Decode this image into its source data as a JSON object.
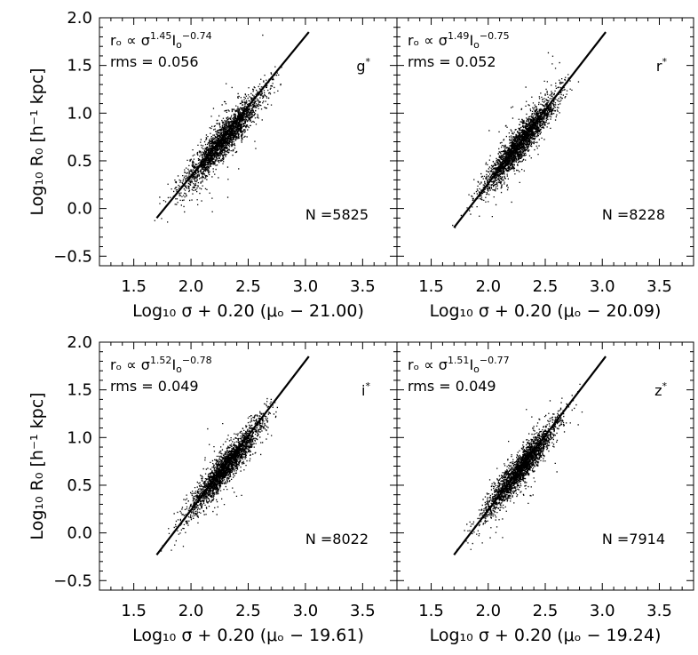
{
  "figure": {
    "ylabel": "Log₁₀ R₀ [h⁻¹ kpc]",
    "x_ticks": [
      "1.5",
      "2.0",
      "2.5",
      "3.0",
      "3.5"
    ],
    "y_ticks": [
      "2.0",
      "1.5",
      "1.0",
      "0.5",
      "0.0",
      "−0.5"
    ]
  },
  "chart_data": [
    {
      "type": "scatter",
      "band": "g*",
      "n_label": "N =5825",
      "relation_label": "rₒ ∝ σ^1.45 Iₒ^−0.74",
      "relation": {
        "lhs": "rₒ ∝ σ",
        "sigma_exp": "1.45",
        "i": "I",
        "i_sub": "o",
        "i_exp": "−0.74"
      },
      "rms_label": "rms = 0.056",
      "xlabel": "Log₁₀ σ + 0.20 (μₒ − 21.00)",
      "xlim": [
        1.2,
        3.8
      ],
      "ylim": [
        -0.6,
        2.0
      ],
      "fit_line": {
        "x": [
          1.7,
          3.03
        ],
        "y": [
          -0.1,
          1.85
        ]
      },
      "cloud": {
        "x_center": 2.28,
        "y_center": 0.73,
        "slope": 1.35,
        "x_spread": 0.17,
        "y_scatter": 0.09,
        "x_min": 1.45,
        "x_max": 2.85
      }
    },
    {
      "type": "scatter",
      "band": "r*",
      "n_label": "N =8228",
      "relation_label": "rₒ ∝ σ^1.49 Iₒ^−0.75",
      "relation": {
        "lhs": "rₒ ∝ σ",
        "sigma_exp": "1.49",
        "i": "I",
        "i_sub": "o",
        "i_exp": "−0.75"
      },
      "rms_label": "rms = 0.052",
      "xlabel": "Log₁₀ σ + 0.20 (μₒ − 20.09)",
      "xlim": [
        1.2,
        3.8
      ],
      "ylim": [
        -0.6,
        2.0
      ],
      "fit_line": {
        "x": [
          1.7,
          3.03
        ],
        "y": [
          -0.2,
          1.85
        ]
      },
      "cloud": {
        "x_center": 2.27,
        "y_center": 0.68,
        "slope": 1.45,
        "x_spread": 0.16,
        "y_scatter": 0.085,
        "x_min": 1.6,
        "x_max": 2.8
      }
    },
    {
      "type": "scatter",
      "band": "i*",
      "n_label": "N =8022",
      "relation_label": "rₒ ∝ σ^1.52 Iₒ^−0.78",
      "relation": {
        "lhs": "rₒ ∝ σ",
        "sigma_exp": "1.52",
        "i": "I",
        "i_sub": "o",
        "i_exp": "−0.78"
      },
      "rms_label": "rms = 0.049",
      "xlabel": "Log₁₀ σ + 0.20 (μₒ − 19.61)",
      "xlim": [
        1.2,
        3.8
      ],
      "ylim": [
        -0.6,
        2.0
      ],
      "fit_line": {
        "x": [
          1.7,
          3.03
        ],
        "y": [
          -0.23,
          1.85
        ]
      },
      "cloud": {
        "x_center": 2.3,
        "y_center": 0.7,
        "slope": 1.45,
        "x_spread": 0.16,
        "y_scatter": 0.08,
        "x_min": 1.65,
        "x_max": 2.9
      }
    },
    {
      "type": "scatter",
      "band": "z*",
      "n_label": "N =7914",
      "relation_label": "rₒ ∝ σ^1.51 Iₒ^−0.77",
      "relation": {
        "lhs": "rₒ ∝ σ",
        "sigma_exp": "1.51",
        "i": "I",
        "i_sub": "o",
        "i_exp": "−0.77"
      },
      "rms_label": "rms = 0.049",
      "xlabel": "Log₁₀ σ + 0.20 (μₒ − 19.24)",
      "xlim": [
        1.2,
        3.8
      ],
      "ylim": [
        -0.6,
        2.0
      ],
      "fit_line": {
        "x": [
          1.7,
          3.03
        ],
        "y": [
          -0.23,
          1.85
        ]
      },
      "cloud": {
        "x_center": 2.28,
        "y_center": 0.68,
        "slope": 1.45,
        "x_spread": 0.16,
        "y_scatter": 0.08,
        "x_min": 1.65,
        "x_max": 2.9
      }
    }
  ]
}
